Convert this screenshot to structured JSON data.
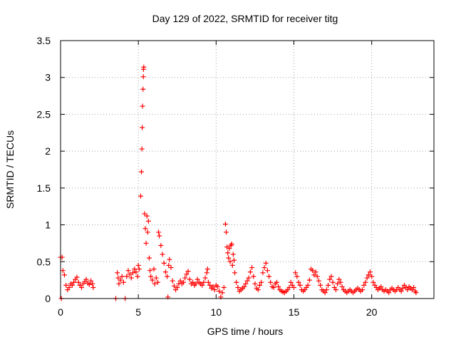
{
  "chart_data": {
    "type": "scatter",
    "title": "Day 129 of 2022, SRMTID for receiver titg",
    "xlabel": "GPS time / hours",
    "ylabel": "SRMTID / TECUs",
    "xlim": [
      0,
      24
    ],
    "ylim": [
      0,
      3.5
    ],
    "grid": true,
    "marker": "+",
    "color": "#ff0000",
    "x_ticks": [
      {
        "value": 0,
        "label": "0"
      },
      {
        "value": 5,
        "label": "5"
      },
      {
        "value": 10,
        "label": "10"
      },
      {
        "value": 15,
        "label": "15"
      },
      {
        "value": 20,
        "label": "20"
      }
    ],
    "y_ticks": [
      {
        "value": 0,
        "label": "0"
      },
      {
        "value": 0.5,
        "label": "0.5"
      },
      {
        "value": 1,
        "label": "1"
      },
      {
        "value": 1.5,
        "label": "1.5"
      },
      {
        "value": 2,
        "label": "2"
      },
      {
        "value": 2.5,
        "label": "2.5"
      },
      {
        "value": 3,
        "label": "3"
      },
      {
        "value": 3.5,
        "label": "3.5"
      }
    ],
    "series": [
      {
        "name": "SRMTID",
        "points": [
          [
            0.0,
            0.56
          ],
          [
            0.05,
            0.0
          ],
          [
            0.1,
            0.56
          ],
          [
            0.15,
            0.38
          ],
          [
            0.25,
            0.32
          ],
          [
            0.35,
            0.18
          ],
          [
            0.45,
            0.12
          ],
          [
            0.55,
            0.15
          ],
          [
            0.65,
            0.2
          ],
          [
            0.75,
            0.18
          ],
          [
            0.85,
            0.22
          ],
          [
            0.95,
            0.26
          ],
          [
            1.05,
            0.29
          ],
          [
            1.15,
            0.22
          ],
          [
            1.25,
            0.18
          ],
          [
            1.35,
            0.15
          ],
          [
            1.45,
            0.2
          ],
          [
            1.55,
            0.23
          ],
          [
            1.65,
            0.26
          ],
          [
            1.75,
            0.21
          ],
          [
            1.85,
            0.19
          ],
          [
            1.95,
            0.24
          ],
          [
            2.05,
            0.2
          ],
          [
            2.1,
            0.15
          ],
          [
            3.55,
            0.0
          ],
          [
            3.65,
            0.35
          ],
          [
            3.7,
            0.28
          ],
          [
            3.75,
            0.2
          ],
          [
            3.85,
            0.25
          ],
          [
            3.95,
            0.3
          ],
          [
            4.05,
            0.22
          ],
          [
            4.15,
            0.0
          ],
          [
            4.25,
            0.3
          ],
          [
            4.35,
            0.38
          ],
          [
            4.45,
            0.33
          ],
          [
            4.55,
            0.28
          ],
          [
            4.65,
            0.35
          ],
          [
            4.75,
            0.4
          ],
          [
            4.85,
            0.36
          ],
          [
            4.95,
            0.3
          ],
          [
            5.0,
            0.45
          ],
          [
            5.05,
            0.4
          ],
          [
            5.15,
            1.39
          ],
          [
            5.2,
            1.72
          ],
          [
            5.23,
            2.03
          ],
          [
            5.25,
            2.32
          ],
          [
            5.27,
            2.61
          ],
          [
            5.3,
            2.84
          ],
          [
            5.32,
            3.01
          ],
          [
            5.33,
            3.11
          ],
          [
            5.35,
            3.14
          ],
          [
            5.4,
            1.15
          ],
          [
            5.45,
            0.95
          ],
          [
            5.5,
            0.75
          ],
          [
            5.55,
            1.12
          ],
          [
            5.6,
            0.9
          ],
          [
            5.65,
            1.05
          ],
          [
            5.7,
            0.55
          ],
          [
            5.75,
            0.38
          ],
          [
            5.8,
            0.3
          ],
          [
            5.9,
            0.25
          ],
          [
            6.0,
            0.4
          ],
          [
            6.05,
            0.2
          ],
          [
            6.15,
            0.28
          ],
          [
            6.25,
            0.22
          ],
          [
            6.3,
            0.9
          ],
          [
            6.35,
            0.85
          ],
          [
            6.45,
            0.72
          ],
          [
            6.55,
            0.6
          ],
          [
            6.65,
            0.48
          ],
          [
            6.75,
            0.36
          ],
          [
            6.85,
            0.3
          ],
          [
            6.9,
            0.02
          ],
          [
            6.95,
            0.45
          ],
          [
            7.0,
            0.53
          ],
          [
            7.1,
            0.42
          ],
          [
            7.2,
            0.24
          ],
          [
            7.3,
            0.17
          ],
          [
            7.4,
            0.12
          ],
          [
            7.5,
            0.15
          ],
          [
            7.6,
            0.2
          ],
          [
            7.7,
            0.24
          ],
          [
            7.8,
            0.2
          ],
          [
            7.9,
            0.22
          ],
          [
            8.0,
            0.28
          ],
          [
            8.1,
            0.33
          ],
          [
            8.2,
            0.37
          ],
          [
            8.3,
            0.26
          ],
          [
            8.4,
            0.2
          ],
          [
            8.5,
            0.22
          ],
          [
            8.6,
            0.18
          ],
          [
            8.7,
            0.2
          ],
          [
            8.8,
            0.26
          ],
          [
            8.9,
            0.22
          ],
          [
            9.0,
            0.2
          ],
          [
            9.1,
            0.18
          ],
          [
            9.2,
            0.22
          ],
          [
            9.3,
            0.28
          ],
          [
            9.4,
            0.35
          ],
          [
            9.45,
            0.4
          ],
          [
            9.5,
            0.22
          ],
          [
            9.6,
            0.18
          ],
          [
            9.7,
            0.14
          ],
          [
            9.8,
            0.16
          ],
          [
            9.9,
            0.12
          ],
          [
            10.0,
            0.18
          ],
          [
            10.1,
            0.16
          ],
          [
            10.2,
            0.1
          ],
          [
            10.3,
            0.02
          ],
          [
            10.4,
            0.08
          ],
          [
            10.5,
            0.15
          ],
          [
            10.6,
            1.01
          ],
          [
            10.65,
            0.9
          ],
          [
            10.7,
            0.7
          ],
          [
            10.75,
            0.62
          ],
          [
            10.8,
            0.55
          ],
          [
            10.85,
            0.68
          ],
          [
            10.9,
            0.5
          ],
          [
            10.95,
            0.72
          ],
          [
            11.0,
            0.74
          ],
          [
            11.05,
            0.45
          ],
          [
            11.1,
            0.6
          ],
          [
            11.15,
            0.52
          ],
          [
            11.2,
            0.35
          ],
          [
            11.3,
            0.22
          ],
          [
            11.4,
            0.15
          ],
          [
            11.5,
            0.1
          ],
          [
            11.6,
            0.12
          ],
          [
            11.7,
            0.14
          ],
          [
            11.8,
            0.16
          ],
          [
            11.9,
            0.2
          ],
          [
            12.0,
            0.24
          ],
          [
            12.1,
            0.28
          ],
          [
            12.2,
            0.36
          ],
          [
            12.3,
            0.42
          ],
          [
            12.4,
            0.3
          ],
          [
            12.5,
            0.2
          ],
          [
            12.6,
            0.14
          ],
          [
            12.7,
            0.12
          ],
          [
            12.8,
            0.18
          ],
          [
            12.9,
            0.22
          ],
          [
            13.0,
            0.35
          ],
          [
            13.1,
            0.42
          ],
          [
            13.2,
            0.48
          ],
          [
            13.3,
            0.38
          ],
          [
            13.4,
            0.3
          ],
          [
            13.5,
            0.22
          ],
          [
            13.6,
            0.16
          ],
          [
            13.7,
            0.15
          ],
          [
            13.8,
            0.2
          ],
          [
            13.9,
            0.22
          ],
          [
            14.0,
            0.16
          ],
          [
            14.1,
            0.12
          ],
          [
            14.2,
            0.1
          ],
          [
            14.3,
            0.09
          ],
          [
            14.4,
            0.08
          ],
          [
            14.5,
            0.1
          ],
          [
            14.6,
            0.12
          ],
          [
            14.7,
            0.15
          ],
          [
            14.8,
            0.22
          ],
          [
            14.9,
            0.18
          ],
          [
            15.0,
            0.15
          ],
          [
            15.1,
            0.35
          ],
          [
            15.2,
            0.3
          ],
          [
            15.3,
            0.22
          ],
          [
            15.4,
            0.18
          ],
          [
            15.5,
            0.12
          ],
          [
            15.6,
            0.1
          ],
          [
            15.7,
            0.12
          ],
          [
            15.8,
            0.15
          ],
          [
            15.9,
            0.18
          ],
          [
            16.0,
            0.25
          ],
          [
            16.1,
            0.4
          ],
          [
            16.2,
            0.38
          ],
          [
            16.3,
            0.32
          ],
          [
            16.4,
            0.36
          ],
          [
            16.5,
            0.3
          ],
          [
            16.6,
            0.24
          ],
          [
            16.7,
            0.18
          ],
          [
            16.8,
            0.12
          ],
          [
            16.9,
            0.1
          ],
          [
            17.0,
            0.08
          ],
          [
            17.1,
            0.12
          ],
          [
            17.2,
            0.18
          ],
          [
            17.3,
            0.26
          ],
          [
            17.4,
            0.3
          ],
          [
            17.5,
            0.22
          ],
          [
            17.6,
            0.15
          ],
          [
            17.7,
            0.12
          ],
          [
            17.8,
            0.2
          ],
          [
            17.9,
            0.26
          ],
          [
            18.0,
            0.22
          ],
          [
            18.1,
            0.16
          ],
          [
            18.2,
            0.12
          ],
          [
            18.3,
            0.1
          ],
          [
            18.4,
            0.08
          ],
          [
            18.5,
            0.1
          ],
          [
            18.6,
            0.12
          ],
          [
            18.7,
            0.1
          ],
          [
            18.8,
            0.08
          ],
          [
            18.9,
            0.1
          ],
          [
            19.0,
            0.12
          ],
          [
            19.1,
            0.14
          ],
          [
            19.2,
            0.12
          ],
          [
            19.3,
            0.1
          ],
          [
            19.4,
            0.12
          ],
          [
            19.5,
            0.18
          ],
          [
            19.6,
            0.22
          ],
          [
            19.7,
            0.28
          ],
          [
            19.8,
            0.32
          ],
          [
            19.9,
            0.36
          ],
          [
            20.0,
            0.3
          ],
          [
            20.1,
            0.22
          ],
          [
            20.2,
            0.18
          ],
          [
            20.3,
            0.15
          ],
          [
            20.4,
            0.12
          ],
          [
            20.5,
            0.14
          ],
          [
            20.6,
            0.16
          ],
          [
            20.7,
            0.12
          ],
          [
            20.8,
            0.1
          ],
          [
            20.9,
            0.12
          ],
          [
            21.0,
            0.1
          ],
          [
            21.1,
            0.08
          ],
          [
            21.2,
            0.12
          ],
          [
            21.3,
            0.14
          ],
          [
            21.4,
            0.12
          ],
          [
            21.5,
            0.1
          ],
          [
            21.6,
            0.12
          ],
          [
            21.7,
            0.15
          ],
          [
            21.8,
            0.12
          ],
          [
            21.9,
            0.1
          ],
          [
            22.0,
            0.14
          ],
          [
            22.1,
            0.18
          ],
          [
            22.2,
            0.15
          ],
          [
            22.3,
            0.12
          ],
          [
            22.4,
            0.16
          ],
          [
            22.5,
            0.14
          ],
          [
            22.6,
            0.12
          ],
          [
            22.7,
            0.15
          ],
          [
            22.8,
            0.1
          ],
          [
            22.85,
            0.08
          ]
        ]
      }
    ]
  }
}
